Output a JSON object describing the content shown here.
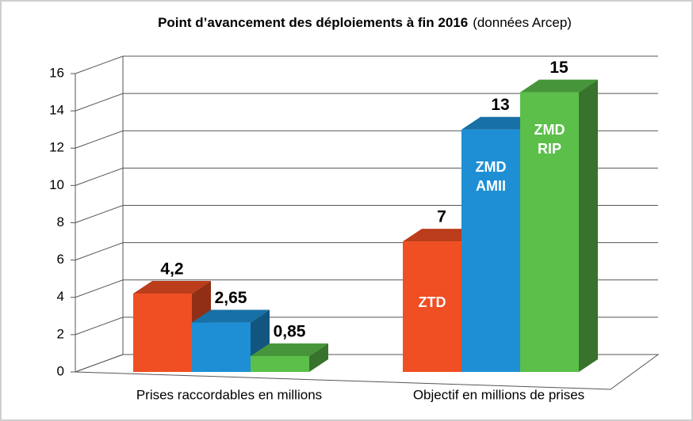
{
  "chart_data": {
    "type": "bar3d",
    "title": "Point d’avancement des déploiements à fin 2016",
    "subtitle": "(données Arcep)",
    "categories": [
      "Prises raccordables en millions",
      "Objectif en millions de prises"
    ],
    "series": [
      {
        "name": "ZTD",
        "color": "#f04e23",
        "values": [
          4.2,
          7
        ],
        "value_labels": [
          "4,2",
          "7"
        ]
      },
      {
        "name": "ZMD AMII",
        "color": "#1e8fd5",
        "values": [
          2.65,
          13
        ],
        "value_labels": [
          "2,65",
          "13"
        ]
      },
      {
        "name": "ZMD RIP",
        "color": "#5bbf4a",
        "values": [
          0.85,
          15
        ],
        "value_labels": [
          "0,85",
          "15"
        ]
      }
    ],
    "ylim": [
      0,
      16
    ],
    "yticks": [
      0,
      2,
      4,
      6,
      8,
      10,
      12,
      14,
      16
    ],
    "grid": true
  }
}
